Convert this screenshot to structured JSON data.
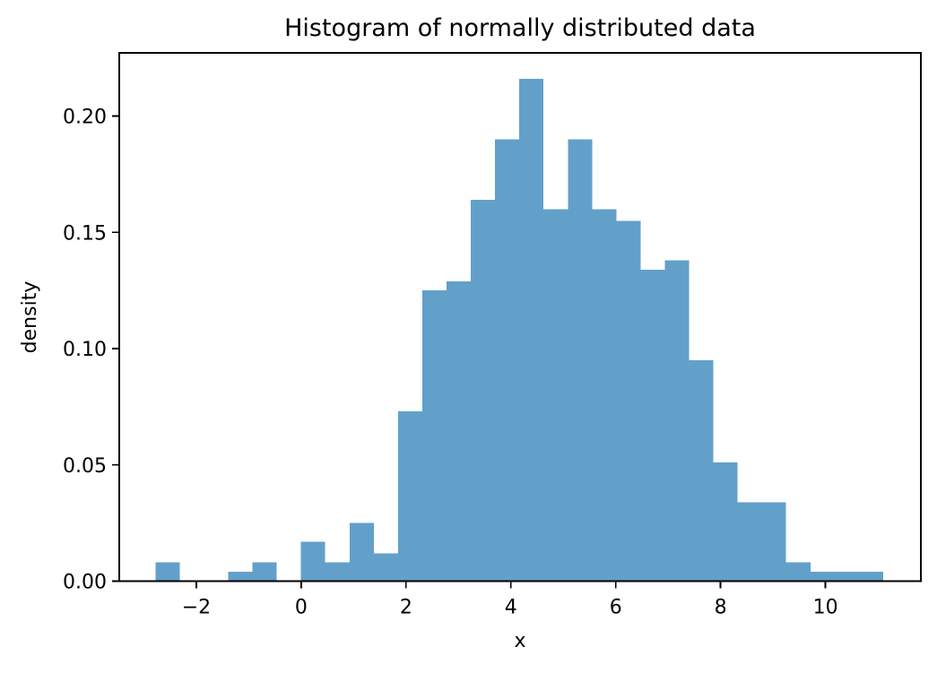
{
  "chart_data": {
    "type": "bar",
    "subtype": "histogram",
    "title": "Histogram of normally distributed data",
    "xlabel": "x",
    "ylabel": "density",
    "grid": false,
    "legend": false,
    "bar_color": "#62a0ca",
    "axis_color": "#000000",
    "background_color": "#ffffff",
    "bins": {
      "start": -2.78,
      "width": 0.4627,
      "count": 30
    },
    "densities": [
      0.008,
      0,
      0,
      0.004,
      0.008,
      0,
      0.017,
      0.008,
      0.025,
      0.012,
      0.073,
      0.125,
      0.129,
      0.164,
      0.19,
      0.216,
      0.16,
      0.19,
      0.16,
      0.155,
      0.134,
      0.138,
      0.095,
      0.051,
      0.034,
      0.034,
      0.008,
      0.004,
      0.004,
      0.004
    ],
    "xlim": [
      -3.47,
      11.82
    ],
    "ylim": [
      0,
      0.2272
    ],
    "x_ticks": [
      {
        "value": -2,
        "label": "−2"
      },
      {
        "value": 0,
        "label": "0"
      },
      {
        "value": 2,
        "label": "2"
      },
      {
        "value": 4,
        "label": "4"
      },
      {
        "value": 6,
        "label": "6"
      },
      {
        "value": 8,
        "label": "8"
      },
      {
        "value": 10,
        "label": "10"
      }
    ],
    "y_ticks": [
      {
        "value": 0.0,
        "label": "0.00"
      },
      {
        "value": 0.05,
        "label": "0.05"
      },
      {
        "value": 0.1,
        "label": "0.10"
      },
      {
        "value": 0.15,
        "label": "0.15"
      },
      {
        "value": 0.2,
        "label": "0.20"
      }
    ]
  }
}
